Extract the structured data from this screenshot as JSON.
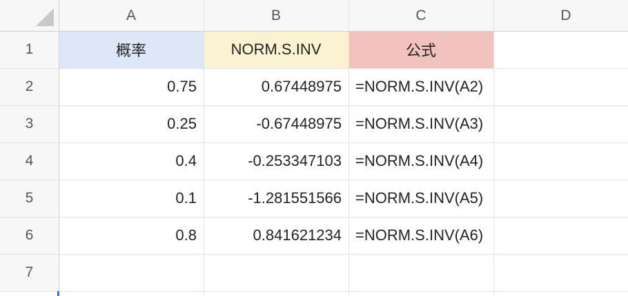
{
  "columns": [
    "A",
    "B",
    "C",
    "D"
  ],
  "rows": [
    {
      "number": "1",
      "cells": [
        "概率",
        "NORM.S.INV",
        "公式"
      ]
    },
    {
      "number": "2",
      "cells": [
        "0.75",
        "0.67448975",
        "=NORM.S.INV(A2)"
      ]
    },
    {
      "number": "3",
      "cells": [
        "0.25",
        "-0.67448975",
        "=NORM.S.INV(A3)"
      ]
    },
    {
      "number": "4",
      "cells": [
        "0.4",
        "-0.253347103",
        "=NORM.S.INV(A4)"
      ]
    },
    {
      "number": "5",
      "cells": [
        "0.1",
        "-1.281551566",
        "=NORM.S.INV(A5)"
      ]
    },
    {
      "number": "6",
      "cells": [
        "0.8",
        "0.841621234",
        "=NORM.S.INV(A6)"
      ]
    },
    {
      "number": "7",
      "cells": []
    }
  ]
}
